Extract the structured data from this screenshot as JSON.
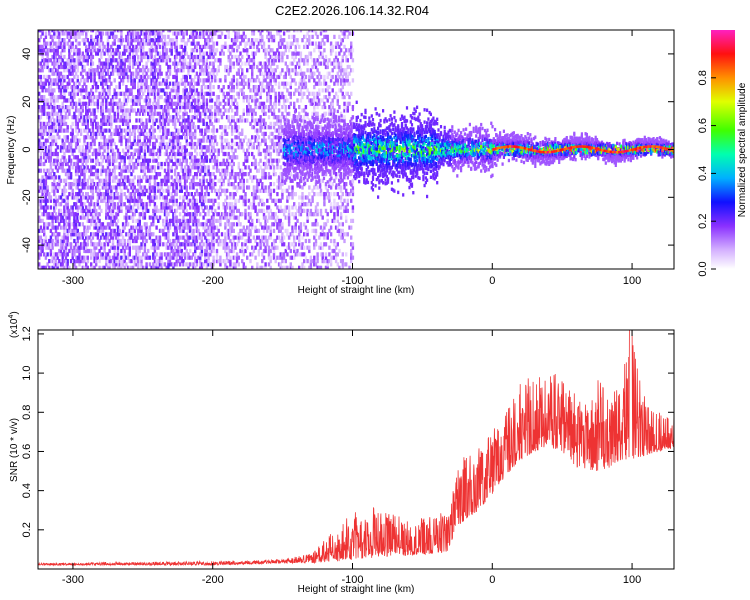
{
  "figure": {
    "title": "C2E2.2026.106.14.32.R04"
  },
  "chart_data": [
    {
      "type": "heatmap",
      "xlabel": "Height of straight line (km)",
      "ylabel": "Frequency (Hz)",
      "xlim": [
        -325,
        130
      ],
      "ylim": [
        -50,
        50
      ],
      "xticks": [
        -300,
        -200,
        -100,
        0,
        100
      ],
      "yticks": [
        -40,
        -20,
        0,
        20,
        40
      ],
      "colorbar": {
        "label": "Normalized spectral amplitude",
        "range": [
          0,
          1
        ],
        "ticks": [
          "0.0",
          "0.2",
          "0.4",
          "0.6",
          "0.8"
        ],
        "colors": [
          "#ffffff",
          "#c080ff",
          "#6a00ff",
          "#0000ff",
          "#00c0ff",
          "#00ff80",
          "#60ff00",
          "#ffff00",
          "#ff8000",
          "#ff0000",
          "#ff00c0"
        ]
      },
      "description_regions": {
        "diffuse_noise_x": [
          -325,
          -100
        ],
        "signal_band_x": [
          -150,
          130
        ],
        "signal_center_freq": 0
      }
    },
    {
      "type": "line",
      "xlabel": "Height of straight line (km)",
      "ylabel": "SNR (10 * v/v)",
      "yscale_label": "(x10",
      "yscale_exp": "4",
      "xlim": [
        -325,
        130
      ],
      "ylim": [
        0,
        1.22
      ],
      "xticks": [
        -300,
        -200,
        -100,
        0,
        100
      ],
      "yticks": [
        "0.2",
        "0.4",
        "0.6",
        "0.8",
        "1.0",
        "1.2"
      ],
      "color": "#ee3333",
      "envelope": {
        "x": [
          -325,
          -200,
          -150,
          -130,
          -110,
          -100,
          -80,
          -60,
          -40,
          -32,
          -25,
          -10,
          0,
          10,
          20,
          30,
          40,
          50,
          60,
          70,
          80,
          90,
          100,
          110,
          120,
          130
        ],
        "base": [
          0.02,
          0.02,
          0.03,
          0.03,
          0.04,
          0.05,
          0.06,
          0.07,
          0.08,
          0.09,
          0.22,
          0.3,
          0.38,
          0.48,
          0.55,
          0.6,
          0.62,
          0.6,
          0.52,
          0.5,
          0.5,
          0.55,
          0.56,
          0.58,
          0.6,
          0.62
        ],
        "peak": [
          0.03,
          0.04,
          0.05,
          0.08,
          0.22,
          0.3,
          0.32,
          0.25,
          0.28,
          0.3,
          0.55,
          0.62,
          0.72,
          0.82,
          0.95,
          1.0,
          1.02,
          0.98,
          0.9,
          0.95,
          0.98,
          0.92,
          1.22,
          0.85,
          0.82,
          0.8
        ]
      }
    }
  ]
}
